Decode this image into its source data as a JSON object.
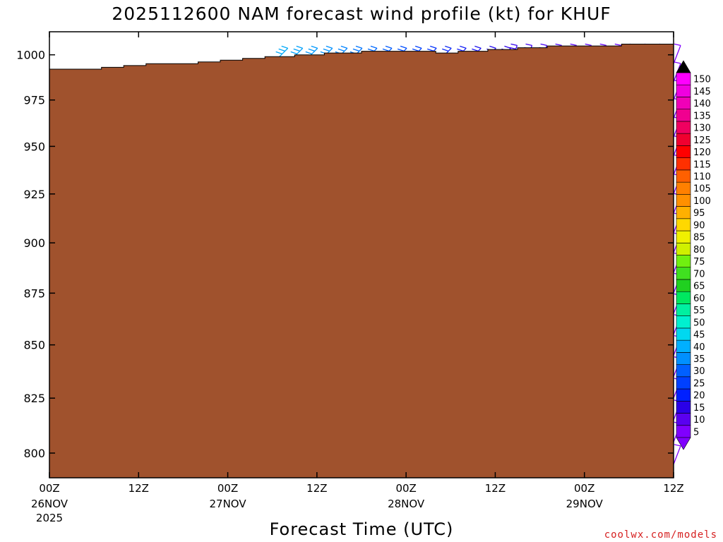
{
  "chart_data": {
    "type": "wind_barb_time_height",
    "title": "2025112600 NAM forecast wind profile (kt) for KHUF",
    "xlabel": "Forecast Time (UTC)",
    "ylabel": "",
    "units": "kt",
    "x_hours_range": [
      0,
      84
    ],
    "y_pressure_range": [
      1013,
      789
    ],
    "y_ticks": [
      800,
      825,
      850,
      875,
      900,
      925,
      950,
      975,
      1000
    ],
    "y_tick_labels": [
      "800",
      "825",
      "850",
      "875",
      "900",
      "925",
      "950",
      "975",
      "1000"
    ],
    "x_ticks": [
      {
        "hour": 0,
        "label": "00Z",
        "date": "26NOV",
        "year": "2025"
      },
      {
        "hour": 12,
        "label": "12Z",
        "date": "",
        "year": ""
      },
      {
        "hour": 24,
        "label": "00Z",
        "date": "27NOV",
        "year": ""
      },
      {
        "hour": 36,
        "label": "12Z",
        "date": "",
        "year": ""
      },
      {
        "hour": 48,
        "label": "00Z",
        "date": "28NOV",
        "year": ""
      },
      {
        "hour": 60,
        "label": "12Z",
        "date": "",
        "year": ""
      },
      {
        "hour": 72,
        "label": "00Z",
        "date": "29NOV",
        "year": ""
      },
      {
        "hour": 84,
        "label": "12Z",
        "date": "",
        "year": ""
      }
    ],
    "wind_levels_hpa": [
      995,
      985,
      975,
      965,
      955,
      945,
      935,
      925,
      915,
      905,
      895,
      885,
      875,
      865,
      855,
      845,
      835,
      825,
      815,
      805,
      795
    ],
    "wind_times_hours": [
      0,
      2,
      4,
      6,
      8,
      10,
      12,
      14,
      16,
      18,
      20,
      22,
      24,
      26,
      28,
      30,
      32,
      34,
      36,
      38,
      40,
      42,
      44,
      46,
      48,
      50,
      52,
      54,
      56,
      58,
      60,
      62,
      64,
      66,
      68,
      70,
      72,
      74,
      76,
      78,
      80,
      82,
      84
    ],
    "surface_pressure_hpa": [
      [
        0,
        992
      ],
      [
        4,
        992
      ],
      [
        7,
        993
      ],
      [
        10,
        994
      ],
      [
        13,
        995
      ],
      [
        16,
        995
      ],
      [
        20,
        996
      ],
      [
        23,
        997
      ],
      [
        26,
        998
      ],
      [
        29,
        999
      ],
      [
        33,
        1000
      ],
      [
        37,
        1001
      ],
      [
        42,
        1002
      ],
      [
        47,
        1002
      ],
      [
        52,
        1001
      ],
      [
        55,
        1002
      ],
      [
        59,
        1003
      ],
      [
        63,
        1004
      ],
      [
        67,
        1005
      ],
      [
        72,
        1005
      ],
      [
        77,
        1006
      ],
      [
        84,
        1006
      ]
    ],
    "colorbar": {
      "values": [
        5,
        10,
        15,
        20,
        25,
        30,
        35,
        40,
        45,
        50,
        55,
        60,
        65,
        70,
        75,
        80,
        85,
        90,
        95,
        100,
        105,
        110,
        115,
        120,
        125,
        130,
        135,
        140,
        145,
        150
      ],
      "colors": [
        "#8000ff",
        "#5a00f0",
        "#2a00e8",
        "#0020ff",
        "#0040ff",
        "#0060ff",
        "#0090ff",
        "#00b0ff",
        "#00d8f0",
        "#00f0d0",
        "#00f0a0",
        "#00e860",
        "#20d020",
        "#40e020",
        "#70f010",
        "#d0f000",
        "#f0f000",
        "#ffd800",
        "#ffb000",
        "#ff9000",
        "#ff8000",
        "#ff6000",
        "#ff3000",
        "#ff0000",
        "#f00030",
        "#f00060",
        "#f00090",
        "#f000b8",
        "#f000e0",
        "#ff00ff"
      ],
      "extend_low_color": "#8000ff",
      "extend_high_color": "#000000"
    },
    "barb_color_stops": [
      [
        0,
        "#0040ff"
      ],
      [
        24,
        "#00c0f0"
      ],
      [
        36,
        "#0090ff"
      ],
      [
        48,
        "#0040ff"
      ],
      [
        60,
        "#2a00e8"
      ],
      [
        72,
        "#6000ff"
      ],
      [
        84,
        "#8000ff"
      ]
    ],
    "ground_color": "#a0522d"
  },
  "credit": "coolwx.com/models"
}
